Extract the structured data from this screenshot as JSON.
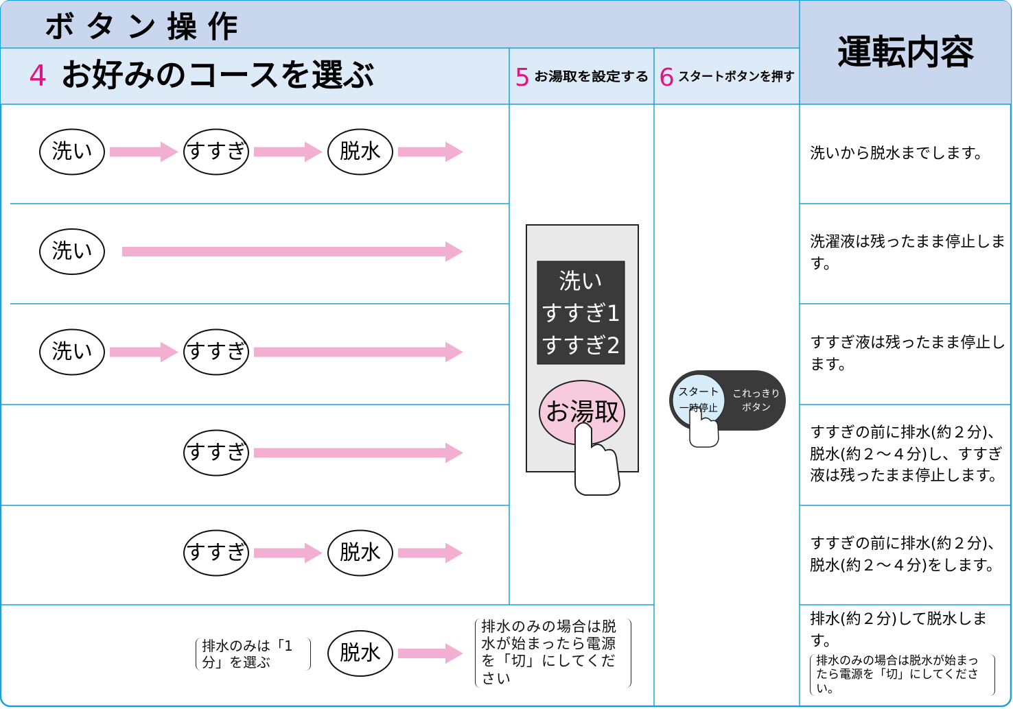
{
  "header": {
    "title": "ボ タ ン 操 作",
    "result_title": "運転内容"
  },
  "steps": [
    {
      "number": "4",
      "label": "お好みのコースを選ぶ"
    },
    {
      "number": "5",
      "label": "お湯取を設定する"
    },
    {
      "number": "6",
      "label": "スタートボタンを押す"
    }
  ],
  "rows": [
    {
      "nodes": [
        "洗い",
        "すすぎ",
        "脱水"
      ],
      "description": "洗いから脱水までします。"
    },
    {
      "nodes": [
        "洗い"
      ],
      "description": "洗濯液は残ったまま停止します。"
    },
    {
      "nodes": [
        "洗い",
        "すすぎ"
      ],
      "description": "すすぎ液は残ったまま停止します。"
    },
    {
      "nodes": [
        "すすぎ"
      ],
      "description": "すすぎの前に排水(約２分)、脱水(約２～４分)し、すすぎ液は残ったまま停止します。"
    },
    {
      "nodes": [
        "すすぎ",
        "脱水"
      ],
      "description": "すすぎの前に排水(約２分)、脱水(約２～４分)をします。"
    },
    {
      "nodes": [
        "脱水"
      ],
      "description": "排水(約２分)して脱水します。",
      "left_note": "排水のみは「1分」を選ぶ",
      "arrow_note": "排水のみの場合は脱水が始まったら電源を「切」にしてください",
      "description_note": "排水のみの場合は脱水が始まったら電源を「切」にしてください。"
    }
  ],
  "panel": {
    "display": [
      "洗い",
      "すすぎ1",
      "すすぎ2"
    ],
    "button": "お湯取"
  },
  "start_button": {
    "top": "スタート",
    "bottom": "一時停止",
    "side": [
      "これっきり",
      "ボタン"
    ]
  }
}
